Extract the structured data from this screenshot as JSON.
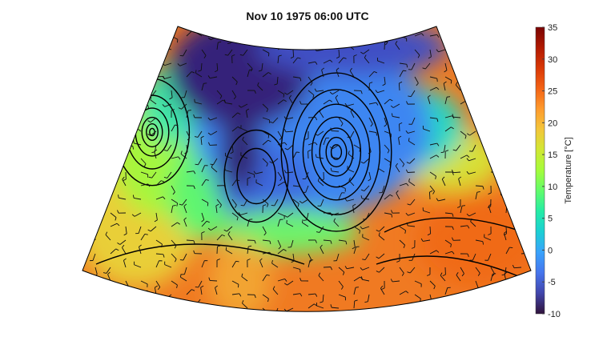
{
  "title": "Nov 10 1975 06:00 UTC",
  "colorbar": {
    "label": "Temperature [°C]",
    "min": -10,
    "max": 35,
    "ticks": [
      "35",
      "30",
      "25",
      "20",
      "15",
      "10",
      "5",
      "0",
      "-5",
      "-10"
    ],
    "colormap": [
      "#30123b",
      "#4145ab",
      "#4675ed",
      "#39a2fc",
      "#1bcfd4",
      "#24eca6",
      "#61fc6c",
      "#a4fc3b",
      "#d1e834",
      "#f3c63a",
      "#fe9b2d",
      "#f36315",
      "#d93806",
      "#b11901",
      "#7a0403"
    ]
  },
  "map": {
    "projection": "lambert-conformal",
    "field": "temperature",
    "overlays": [
      "pressure-contours",
      "wind-barbs",
      "coastlines",
      "state-borders"
    ]
  }
}
